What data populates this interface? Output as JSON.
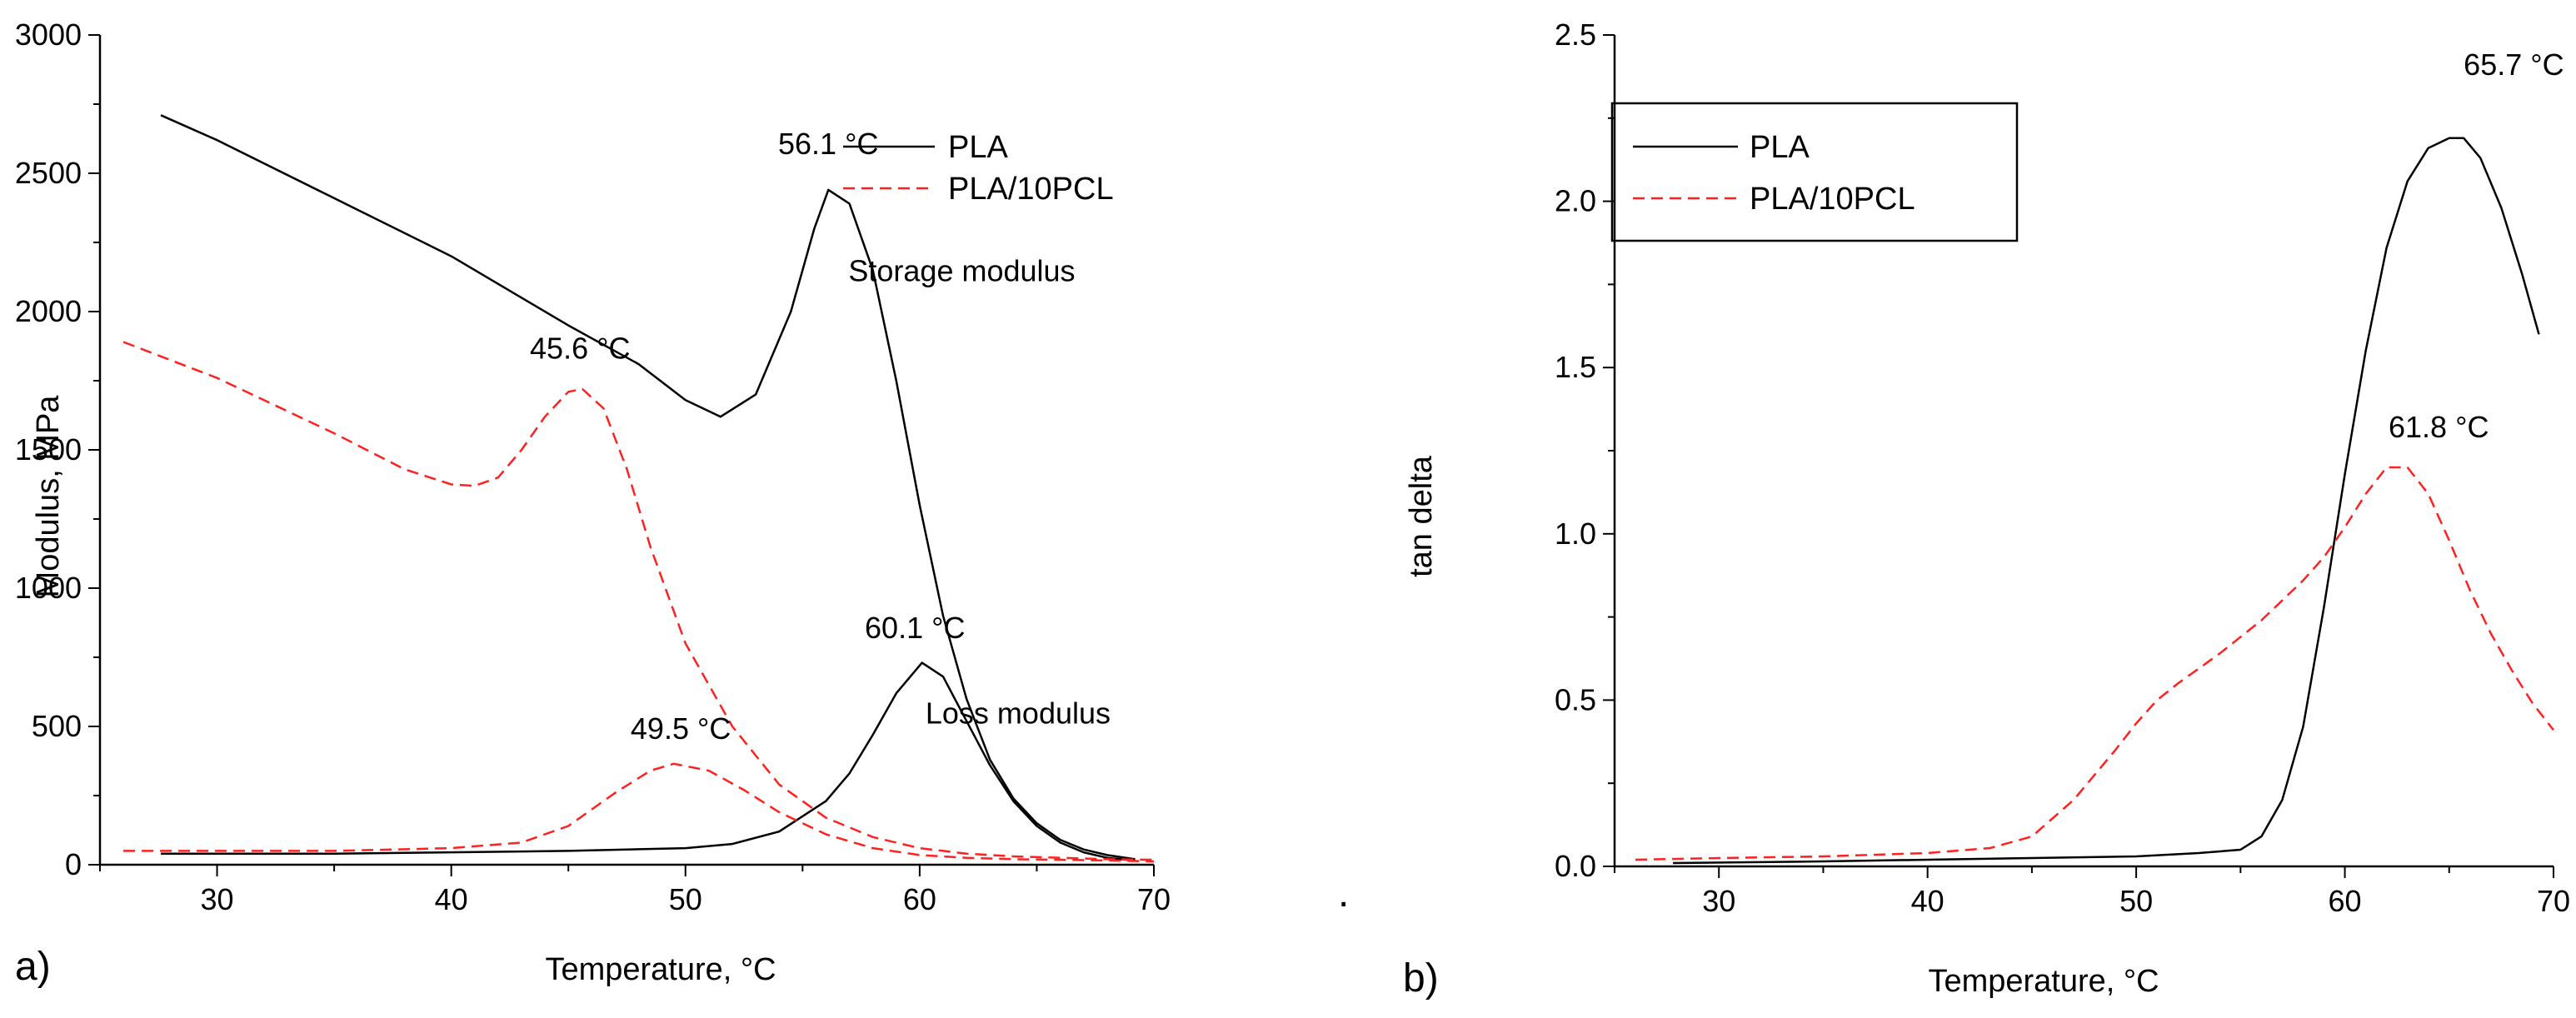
{
  "colors": {
    "pla": "#000000",
    "pla_pcl": "#ff2020",
    "axis": "#000000",
    "background": "#ffffff"
  },
  "chart_data": [
    {
      "type": "line",
      "panel_label": "a)",
      "xlabel": "Temperature, °C",
      "ylabel": "Modulus, MPa",
      "xlim": [
        25,
        70
      ],
      "ylim": [
        0,
        3000
      ],
      "xticks": [
        30,
        40,
        50,
        60,
        70
      ],
      "yticks": [
        0,
        500,
        1000,
        1500,
        2000,
        2500,
        3000
      ],
      "legend": {
        "position": "top-right",
        "entries": [
          {
            "label": "PLA",
            "style": "solid",
            "color": "#000000"
          },
          {
            "label": "PLA/10PCL",
            "style": "dashed",
            "color": "#ff2020"
          }
        ]
      },
      "series": [
        {
          "name": "PLA",
          "quantity": "Storage modulus",
          "style": "solid",
          "x": [
            27.6,
            30,
            35,
            40,
            45,
            48,
            50,
            51.5,
            53,
            54.5,
            55.5,
            56.1,
            57,
            58,
            59,
            60,
            61,
            62,
            63,
            64,
            65,
            66,
            67,
            68,
            69.2
          ],
          "y": [
            2710,
            2620,
            2410,
            2200,
            1950,
            1810,
            1680,
            1620,
            1700,
            2000,
            2300,
            2440,
            2390,
            2150,
            1750,
            1300,
            900,
            600,
            380,
            240,
            150,
            90,
            55,
            35,
            20
          ]
        },
        {
          "name": "PLA",
          "quantity": "Loss modulus",
          "style": "solid",
          "x": [
            27.6,
            35,
            40,
            45,
            50,
            52,
            54,
            56,
            57,
            58,
            59,
            60.1,
            61,
            62,
            63,
            64,
            65,
            66,
            67,
            68,
            69.2
          ],
          "y": [
            40,
            40,
            45,
            50,
            60,
            75,
            120,
            230,
            330,
            470,
            620,
            730,
            680,
            520,
            360,
            230,
            140,
            80,
            45,
            25,
            15
          ]
        },
        {
          "name": "PLA/10PCL",
          "quantity": "Storage modulus",
          "style": "dashed",
          "x": [
            26,
            30,
            35,
            38,
            40,
            41,
            42,
            43,
            44,
            45,
            45.6,
            46.5,
            47.5,
            48.5,
            50,
            52,
            54,
            56,
            58,
            60,
            62,
            64,
            66,
            68,
            70
          ],
          "y": [
            1890,
            1760,
            1560,
            1430,
            1375,
            1370,
            1400,
            1500,
            1620,
            1710,
            1720,
            1650,
            1430,
            1150,
            800,
            500,
            290,
            170,
            100,
            60,
            40,
            30,
            25,
            20,
            18
          ]
        },
        {
          "name": "PLA/10PCL",
          "quantity": "Loss modulus",
          "style": "dashed",
          "x": [
            26,
            35,
            40,
            43,
            45,
            47,
            48.5,
            49.5,
            51,
            52.5,
            54,
            56,
            58,
            60,
            62,
            64,
            66,
            68,
            70
          ],
          "y": [
            50,
            50,
            60,
            80,
            140,
            260,
            340,
            365,
            340,
            270,
            190,
            110,
            60,
            35,
            25,
            20,
            18,
            15,
            12
          ]
        }
      ],
      "annotations": [
        {
          "text": "56.1 °C",
          "x": 56.1,
          "y": 2570
        },
        {
          "text": "45.6 °C",
          "x": 45.5,
          "y": 1830
        },
        {
          "text": "60.1 °C",
          "x": 59.8,
          "y": 820
        },
        {
          "text": "49.5 °C",
          "x": 49.8,
          "y": 455
        },
        {
          "text": "Storage modulus",
          "x": 61.8,
          "y": 2110
        },
        {
          "text": "Loss modulus",
          "x": 64.2,
          "y": 510
        }
      ]
    },
    {
      "type": "line",
      "panel_label": "b)",
      "xlabel": "Temperature, °C",
      "ylabel": "tan delta",
      "xlim": [
        25,
        70
      ],
      "ylim": [
        0,
        2.5
      ],
      "xticks": [
        30,
        40,
        50,
        60,
        70
      ],
      "yticks": [
        0.0,
        0.5,
        1.0,
        1.5,
        2.0,
        2.5
      ],
      "ytick_labels": [
        "0.0",
        "0.5",
        "1.0",
        "1.5",
        "2.0",
        "2.5"
      ],
      "legend": {
        "position": "top-left",
        "entries": [
          {
            "label": "PLA",
            "style": "solid",
            "color": "#000000"
          },
          {
            "label": "PLA/10PCL",
            "style": "dashed",
            "color": "#ff2020"
          }
        ]
      },
      "series": [
        {
          "name": "PLA",
          "style": "solid",
          "x": [
            27.8,
            35,
            40,
            45,
            50,
            53,
            55,
            56,
            57,
            58,
            59,
            60,
            61,
            62,
            63,
            64,
            65,
            65.7,
            66.5,
            67.5,
            68.5,
            69.3
          ],
          "y": [
            0.01,
            0.015,
            0.02,
            0.025,
            0.03,
            0.04,
            0.05,
            0.09,
            0.2,
            0.42,
            0.78,
            1.18,
            1.55,
            1.86,
            2.06,
            2.16,
            2.19,
            2.19,
            2.13,
            1.98,
            1.78,
            1.6
          ]
        },
        {
          "name": "PLA/10PCL",
          "style": "dashed",
          "x": [
            26,
            30,
            35,
            40,
            43,
            45,
            47,
            49,
            50,
            51,
            52,
            54,
            56,
            58,
            59,
            60,
            61,
            62,
            63,
            64,
            65,
            66,
            67,
            68,
            69,
            70
          ],
          "y": [
            0.02,
            0.025,
            0.03,
            0.04,
            0.055,
            0.09,
            0.2,
            0.35,
            0.43,
            0.5,
            0.55,
            0.64,
            0.74,
            0.86,
            0.93,
            1.02,
            1.12,
            1.2,
            1.2,
            1.12,
            0.98,
            0.83,
            0.7,
            0.59,
            0.49,
            0.41
          ]
        }
      ],
      "annotations": [
        {
          "text": "65.7 °C",
          "x": 68.1,
          "y": 2.38
        },
        {
          "text": "61.8 °C",
          "x": 64.5,
          "y": 1.29
        }
      ]
    }
  ],
  "decorations": {
    "dot": "."
  }
}
